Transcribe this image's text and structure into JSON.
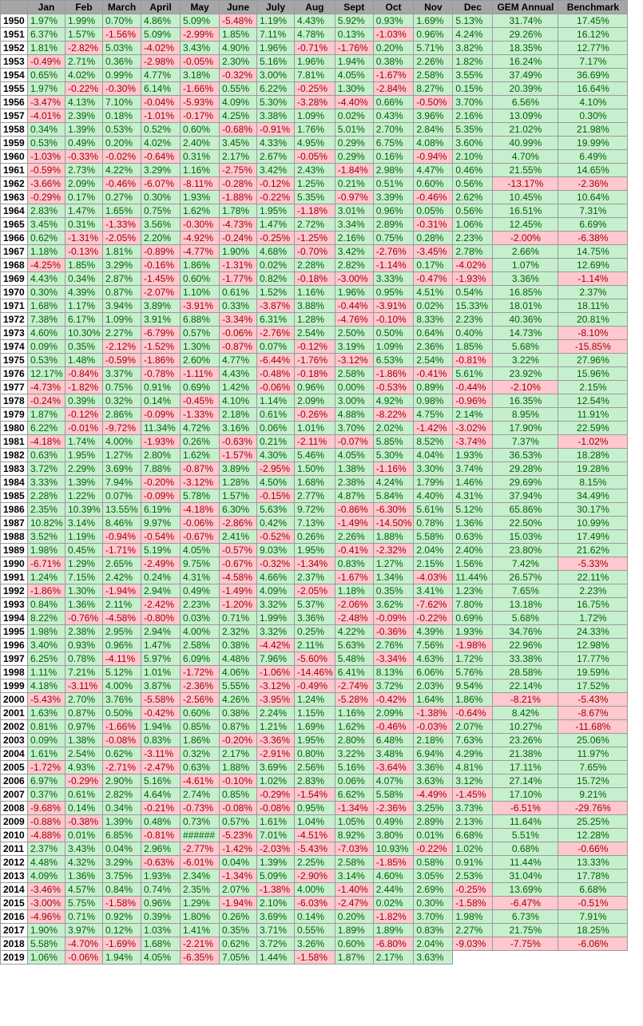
{
  "colors": {
    "header_bg": "#a6a6a6",
    "positive_bg": "#c6efce",
    "positive_text": "#006100",
    "negative_bg": "#ffc7ce",
    "negative_text": "#9c0006"
  },
  "headers": [
    "",
    "Jan",
    "Feb",
    "March",
    "April",
    "May",
    "June",
    "July",
    "Aug",
    "Sept",
    "Oct",
    "Nov",
    "Dec",
    "GEM Annual",
    "Benchmark"
  ],
  "rows": [
    [
      "1950",
      "1.97%",
      "1.99%",
      "0.70%",
      "4.86%",
      "5.09%",
      "-5.48%",
      "1.19%",
      "4.43%",
      "5.92%",
      "0.93%",
      "1.69%",
      "5.13%",
      "31.74%",
      "17.45%"
    ],
    [
      "1951",
      "6.37%",
      "1.57%",
      "-1.56%",
      "5.09%",
      "-2.99%",
      "1.85%",
      "7.11%",
      "4.78%",
      "0.13%",
      "-1.03%",
      "0.96%",
      "4.24%",
      "29.26%",
      "16.12%"
    ],
    [
      "1952",
      "1.81%",
      "-2.82%",
      "5.03%",
      "-4.02%",
      "3.43%",
      "4.90%",
      "1.96%",
      "-0.71%",
      "-1.76%",
      "0.20%",
      "5.71%",
      "3.82%",
      "18.35%",
      "12.77%"
    ],
    [
      "1953",
      "-0.49%",
      "2.71%",
      "0.36%",
      "-2.98%",
      "-0.05%",
      "2.30%",
      "5.16%",
      "1.96%",
      "1.94%",
      "0.38%",
      "2.26%",
      "1.82%",
      "16.24%",
      "7.17%"
    ],
    [
      "1954",
      "0.65%",
      "4.02%",
      "0.99%",
      "4.77%",
      "3.18%",
      "-0.32%",
      "3.00%",
      "7.81%",
      "4.05%",
      "-1.67%",
      "2.58%",
      "3.55%",
      "37.49%",
      "36.69%"
    ],
    [
      "1955",
      "1.97%",
      "-0.22%",
      "-0.30%",
      "6.14%",
      "-1.66%",
      "0.55%",
      "6.22%",
      "-0.25%",
      "1.30%",
      "-2.84%",
      "8.27%",
      "0.15%",
      "20.39%",
      "16.64%"
    ],
    [
      "1956",
      "-3.47%",
      "4.13%",
      "7.10%",
      "-0.04%",
      "-5.93%",
      "4.09%",
      "5.30%",
      "-3.28%",
      "-4.40%",
      "0.66%",
      "-0.50%",
      "3.70%",
      "6.56%",
      "4.10%"
    ],
    [
      "1957",
      "-4.01%",
      "2.39%",
      "0.18%",
      "-1.01%",
      "-0.17%",
      "4.25%",
      "3.38%",
      "1.09%",
      "0.02%",
      "0.43%",
      "3.96%",
      "2.16%",
      "13.09%",
      "0.30%"
    ],
    [
      "1958",
      "0.34%",
      "1.39%",
      "0.53%",
      "0.52%",
      "0.60%",
      "-0.68%",
      "-0.91%",
      "1.76%",
      "5.01%",
      "2.70%",
      "2.84%",
      "5.35%",
      "21.02%",
      "21.98%"
    ],
    [
      "1959",
      "0.53%",
      "0.49%",
      "0.20%",
      "4.02%",
      "2.40%",
      "3.45%",
      "4.33%",
      "4.95%",
      "0.29%",
      "6.75%",
      "4.08%",
      "3.60%",
      "40.99%",
      "19.99%"
    ],
    [
      "1960",
      "-1.03%",
      "-0.33%",
      "-0.02%",
      "-0.64%",
      "0.31%",
      "2.17%",
      "2.67%",
      "-0.05%",
      "0.29%",
      "0.16%",
      "-0.94%",
      "2.10%",
      "4.70%",
      "6.49%"
    ],
    [
      "1961",
      "-0.59%",
      "2.73%",
      "4.22%",
      "3.29%",
      "1.16%",
      "-2.75%",
      "3.42%",
      "2.43%",
      "-1.84%",
      "2.98%",
      "4.47%",
      "0.46%",
      "21.55%",
      "14.65%"
    ],
    [
      "1962",
      "-3.66%",
      "2.09%",
      "-0.46%",
      "-6.07%",
      "-8.11%",
      "-0.28%",
      "-0.12%",
      "1.25%",
      "0.21%",
      "0.51%",
      "0.60%",
      "0.56%",
      "-13.17%",
      "-2.36%"
    ],
    [
      "1963",
      "-0.29%",
      "0.17%",
      "0.27%",
      "0.30%",
      "1.93%",
      "-1.88%",
      "-0.22%",
      "5.35%",
      "-0.97%",
      "3.39%",
      "-0.46%",
      "2.62%",
      "10.45%",
      "10.64%"
    ],
    [
      "1964",
      "2.83%",
      "1.47%",
      "1.65%",
      "0.75%",
      "1.62%",
      "1.78%",
      "1.95%",
      "-1.18%",
      "3.01%",
      "0.96%",
      "0.05%",
      "0.56%",
      "16.51%",
      "7.31%"
    ],
    [
      "1965",
      "3.45%",
      "0.31%",
      "-1.33%",
      "3.56%",
      "-0.30%",
      "-4.73%",
      "1.47%",
      "2.72%",
      "3.34%",
      "2.89%",
      "-0.31%",
      "1.06%",
      "12.45%",
      "6.69%"
    ],
    [
      "1966",
      "0.62%",
      "-1.31%",
      "-2.05%",
      "2.20%",
      "-4.92%",
      "-0.24%",
      "-0.25%",
      "-1.25%",
      "2.16%",
      "0.75%",
      "0.28%",
      "2.23%",
      "-2.00%",
      "-6.38%"
    ],
    [
      "1967",
      "1.18%",
      "-0.13%",
      "1.81%",
      "-0.89%",
      "-4.77%",
      "1.90%",
      "4.68%",
      "-0.70%",
      "3.42%",
      "-2.76%",
      "-3.45%",
      "2.78%",
      "2.66%",
      "14.75%"
    ],
    [
      "1968",
      "-4.25%",
      "1.85%",
      "3.29%",
      "-0.16%",
      "1.86%",
      "-1.31%",
      "0.02%",
      "2.28%",
      "2.82%",
      "-1.14%",
      "0.17%",
      "-4.02%",
      "1.07%",
      "12.69%"
    ],
    [
      "1969",
      "4.43%",
      "0.34%",
      "2.87%",
      "-1.45%",
      "0.60%",
      "-1.77%",
      "0.82%",
      "-0.18%",
      "-3.00%",
      "3.33%",
      "-0.47%",
      "-1.93%",
      "3.36%",
      "-1.14%"
    ],
    [
      "1970",
      "0.30%",
      "4.39%",
      "0.87%",
      "-2.07%",
      "1.10%",
      "0.61%",
      "1.52%",
      "1.16%",
      "1.96%",
      "0.95%",
      "4.51%",
      "0.54%",
      "16.85%",
      "2.37%"
    ],
    [
      "1971",
      "1.68%",
      "1.17%",
      "3.94%",
      "3.89%",
      "-3.91%",
      "0.33%",
      "-3.87%",
      "3.88%",
      "-0.44%",
      "-3.91%",
      "0.02%",
      "15.33%",
      "18.01%",
      "18.11%"
    ],
    [
      "1972",
      "7.38%",
      "6.17%",
      "1.09%",
      "3.91%",
      "6.88%",
      "-3.34%",
      "6.31%",
      "1.28%",
      "-4.76%",
      "-0.10%",
      "8.33%",
      "2.23%",
      "40.36%",
      "20.81%"
    ],
    [
      "1973",
      "4.60%",
      "10.30%",
      "2.27%",
      "-6.79%",
      "0.57%",
      "-0.06%",
      "-2.76%",
      "2.54%",
      "2.50%",
      "0.50%",
      "0.64%",
      "0.40%",
      "14.73%",
      "-8.10%"
    ],
    [
      "1974",
      "0.09%",
      "0.35%",
      "-2.12%",
      "-1.52%",
      "1.30%",
      "-0.87%",
      "0.07%",
      "-0.12%",
      "3.19%",
      "1.09%",
      "2.36%",
      "1.85%",
      "5.68%",
      "-15.85%"
    ],
    [
      "1975",
      "0.53%",
      "1.48%",
      "-0.59%",
      "-1.86%",
      "2.60%",
      "4.77%",
      "-6.44%",
      "-1.76%",
      "-3.12%",
      "6.53%",
      "2.54%",
      "-0.81%",
      "3.22%",
      "27.96%"
    ],
    [
      "1976",
      "12.17%",
      "-0.84%",
      "3.37%",
      "-0.78%",
      "-1.11%",
      "4.43%",
      "-0.48%",
      "-0.18%",
      "2.58%",
      "-1.86%",
      "-0.41%",
      "5.61%",
      "23.92%",
      "15.96%"
    ],
    [
      "1977",
      "-4.73%",
      "-1.82%",
      "0.75%",
      "0.91%",
      "0.69%",
      "1.42%",
      "-0.06%",
      "0.96%",
      "0.00%",
      "-0.53%",
      "0.89%",
      "-0.44%",
      "-2.10%",
      "2.15%"
    ],
    [
      "1978",
      "-0.24%",
      "0.39%",
      "0.32%",
      "0.14%",
      "-0.45%",
      "4.10%",
      "1.14%",
      "2.09%",
      "3.00%",
      "4.92%",
      "0.98%",
      "-0.96%",
      "16.35%",
      "12.54%"
    ],
    [
      "1979",
      "1.87%",
      "-0.12%",
      "2.86%",
      "-0.09%",
      "-1.33%",
      "2.18%",
      "0.61%",
      "-0.26%",
      "4.88%",
      "-8.22%",
      "4.75%",
      "2.14%",
      "8.95%",
      "11.91%"
    ],
    [
      "1980",
      "6.22%",
      "-0.01%",
      "-9.72%",
      "11.34%",
      "4.72%",
      "3.16%",
      "0.06%",
      "1.01%",
      "3.70%",
      "2.02%",
      "-1.42%",
      "-3.02%",
      "17.90%",
      "22.59%"
    ],
    [
      "1981",
      "-4.18%",
      "1.74%",
      "4.00%",
      "-1.93%",
      "0.26%",
      "-0.63%",
      "0.21%",
      "-2.11%",
      "-0.07%",
      "5.85%",
      "8.52%",
      "-3.74%",
      "7.37%",
      "-1.02%"
    ],
    [
      "1982",
      "0.63%",
      "1.95%",
      "1.27%",
      "2.80%",
      "1.62%",
      "-1.57%",
      "4.30%",
      "5.46%",
      "4.05%",
      "5.30%",
      "4.04%",
      "1.93%",
      "36.53%",
      "18.28%"
    ],
    [
      "1983",
      "3.72%",
      "2.29%",
      "3.69%",
      "7.88%",
      "-0.87%",
      "3.89%",
      "-2.95%",
      "1.50%",
      "1.38%",
      "-1.16%",
      "3.30%",
      "3.74%",
      "29.28%",
      "19.28%"
    ],
    [
      "1984",
      "3.33%",
      "1.39%",
      "7.94%",
      "-0.20%",
      "-3.12%",
      "1.28%",
      "4.50%",
      "1.68%",
      "2.38%",
      "4.24%",
      "1.79%",
      "1.46%",
      "29.69%",
      "8.15%"
    ],
    [
      "1985",
      "2.28%",
      "1.22%",
      "0.07%",
      "-0.09%",
      "5.78%",
      "1.57%",
      "-0.15%",
      "2.77%",
      "4.87%",
      "5.84%",
      "4.40%",
      "4.31%",
      "37.94%",
      "34.49%"
    ],
    [
      "1986",
      "2.35%",
      "10.39%",
      "13.55%",
      "6.19%",
      "-4.18%",
      "6.30%",
      "5.63%",
      "9.72%",
      "-0.86%",
      "-6.30%",
      "5.61%",
      "5.12%",
      "65.86%",
      "30.17%"
    ],
    [
      "1987",
      "10.82%",
      "3.14%",
      "8.46%",
      "9.97%",
      "-0.06%",
      "-2.86%",
      "0.42%",
      "7.13%",
      "-1.49%",
      "-14.50%",
      "0.78%",
      "1.36%",
      "22.50%",
      "10.99%"
    ],
    [
      "1988",
      "3.52%",
      "1.19%",
      "-0.94%",
      "-0.54%",
      "-0.67%",
      "2.41%",
      "-0.52%",
      "0.26%",
      "2.26%",
      "1.88%",
      "5.58%",
      "0.63%",
      "15.03%",
      "17.49%"
    ],
    [
      "1989",
      "1.98%",
      "0.45%",
      "-1.71%",
      "5.19%",
      "4.05%",
      "-0.57%",
      "9.03%",
      "1.95%",
      "-0.41%",
      "-2.32%",
      "2.04%",
      "2.40%",
      "23.80%",
      "21.62%"
    ],
    [
      "1990",
      "-6.71%",
      "1.29%",
      "2.65%",
      "-2.49%",
      "9.75%",
      "-0.67%",
      "-0.32%",
      "-1.34%",
      "0.83%",
      "1.27%",
      "2.15%",
      "1.56%",
      "7.42%",
      "-5.33%"
    ],
    [
      "1991",
      "1.24%",
      "7.15%",
      "2.42%",
      "0.24%",
      "4.31%",
      "-4.58%",
      "4.66%",
      "2.37%",
      "-1.67%",
      "1.34%",
      "-4.03%",
      "11.44%",
      "26.57%",
      "22.11%"
    ],
    [
      "1992",
      "-1.86%",
      "1.30%",
      "-1.94%",
      "2.94%",
      "0.49%",
      "-1.49%",
      "4.09%",
      "-2.05%",
      "1.18%",
      "0.35%",
      "3.41%",
      "1.23%",
      "7.65%",
      "2.23%"
    ],
    [
      "1993",
      "0.84%",
      "1.36%",
      "2.11%",
      "-2.42%",
      "2.23%",
      "-1.20%",
      "3.32%",
      "5.37%",
      "-2.06%",
      "3.62%",
      "-7.62%",
      "7.80%",
      "13.18%",
      "16.75%"
    ],
    [
      "1994",
      "8.22%",
      "-0.76%",
      "-4.58%",
      "-0.80%",
      "0.03%",
      "0.71%",
      "1.99%",
      "3.36%",
      "-2.48%",
      "-0.09%",
      "-0.22%",
      "0.69%",
      "5.68%",
      "1.72%"
    ],
    [
      "1995",
      "1.98%",
      "2.38%",
      "2.95%",
      "2.94%",
      "4.00%",
      "2.32%",
      "3.32%",
      "0.25%",
      "4.22%",
      "-0.36%",
      "4.39%",
      "1.93%",
      "34.76%",
      "24.33%"
    ],
    [
      "1996",
      "3.40%",
      "0.93%",
      "0.96%",
      "1.47%",
      "2.58%",
      "0.38%",
      "-4.42%",
      "2.11%",
      "5.63%",
      "2.76%",
      "7.56%",
      "-1.98%",
      "22.96%",
      "12.98%"
    ],
    [
      "1997",
      "6.25%",
      "0.78%",
      "-4.11%",
      "5.97%",
      "6.09%",
      "4.48%",
      "7.96%",
      "-5.60%",
      "5.48%",
      "-3.34%",
      "4.63%",
      "1.72%",
      "33.38%",
      "17.77%"
    ],
    [
      "1998",
      "1.11%",
      "7.21%",
      "5.12%",
      "1.01%",
      "-1.72%",
      "4.06%",
      "-1.06%",
      "-14.46%",
      "6.41%",
      "8.13%",
      "6.06%",
      "5.76%",
      "28.58%",
      "19.59%"
    ],
    [
      "1999",
      "4.18%",
      "-3.11%",
      "4.00%",
      "3.87%",
      "-2.36%",
      "5.55%",
      "-3.12%",
      "-0.49%",
      "-2.74%",
      "3.72%",
      "2.03%",
      "9.54%",
      "22.14%",
      "17.52%"
    ],
    [
      "2000",
      "-5.43%",
      "2.70%",
      "3.76%",
      "-5.58%",
      "-2.56%",
      "4.26%",
      "-3.95%",
      "1.24%",
      "-5.28%",
      "-0.42%",
      "1.64%",
      "1.86%",
      "-8.21%",
      "-5.43%"
    ],
    [
      "2001",
      "1.63%",
      "0.87%",
      "0.50%",
      "-0.42%",
      "0.60%",
      "0.38%",
      "2.24%",
      "1.15%",
      "1.16%",
      "2.09%",
      "-1.38%",
      "-0.64%",
      "8.42%",
      "-8.67%"
    ],
    [
      "2002",
      "0.81%",
      "0.97%",
      "-1.66%",
      "1.94%",
      "0.85%",
      "0.87%",
      "1.21%",
      "1.69%",
      "1.62%",
      "-0.46%",
      "-0.03%",
      "2.07%",
      "10.27%",
      "-11.68%"
    ],
    [
      "2003",
      "0.09%",
      "1.38%",
      "-0.08%",
      "0.83%",
      "1.86%",
      "-0.20%",
      "-3.36%",
      "1.95%",
      "2.80%",
      "6.48%",
      "2.18%",
      "7.63%",
      "23.26%",
      "25.06%"
    ],
    [
      "2004",
      "1.61%",
      "2.54%",
      "0.62%",
      "-3.11%",
      "0.32%",
      "2.17%",
      "-2.91%",
      "0.80%",
      "3.22%",
      "3.48%",
      "6.94%",
      "4.29%",
      "21.38%",
      "11.97%"
    ],
    [
      "2005",
      "-1.72%",
      "4.93%",
      "-2.71%",
      "-2.47%",
      "0.63%",
      "1.88%",
      "3.69%",
      "2.56%",
      "5.16%",
      "-3.64%",
      "3.36%",
      "4.81%",
      "17.11%",
      "7.65%"
    ],
    [
      "2006",
      "6.97%",
      "-0.29%",
      "2.90%",
      "5.16%",
      "-4.61%",
      "-0.10%",
      "1.02%",
      "2.83%",
      "0.06%",
      "4.07%",
      "3.63%",
      "3.12%",
      "27.14%",
      "15.72%"
    ],
    [
      "2007",
      "0.37%",
      "0.61%",
      "2.82%",
      "4.64%",
      "2.74%",
      "0.85%",
      "-0.29%",
      "-1.54%",
      "6.62%",
      "5.58%",
      "-4.49%",
      "-1.45%",
      "17.10%",
      "9.21%"
    ],
    [
      "2008",
      "-9.68%",
      "0.14%",
      "0.34%",
      "-0.21%",
      "-0.73%",
      "-0.08%",
      "-0.08%",
      "0.95%",
      "-1.34%",
      "-2.36%",
      "3.25%",
      "3.73%",
      "-6.51%",
      "-29.76%"
    ],
    [
      "2009",
      "-0.88%",
      "-0.38%",
      "1.39%",
      "0.48%",
      "0.73%",
      "0.57%",
      "1.61%",
      "1.04%",
      "1.05%",
      "0.49%",
      "2.89%",
      "2.13%",
      "11.64%",
      "25.25%"
    ],
    [
      "2010",
      "-4.88%",
      "0.01%",
      "6.85%",
      "-0.81%",
      "######",
      "-5.23%",
      "7.01%",
      "-4.51%",
      "8.92%",
      "3.80%",
      "0.01%",
      "6.68%",
      "5.51%",
      "12.28%"
    ],
    [
      "2011",
      "2.37%",
      "3.43%",
      "0.04%",
      "2.96%",
      "-2.77%",
      "-1.42%",
      "-2.03%",
      "-5.43%",
      "-7.03%",
      "10.93%",
      "-0.22%",
      "1.02%",
      "0.68%",
      "-0.66%"
    ],
    [
      "2012",
      "4.48%",
      "4.32%",
      "3.29%",
      "-0.63%",
      "-6.01%",
      "0.04%",
      "1.39%",
      "2.25%",
      "2.58%",
      "-1.85%",
      "0.58%",
      "0.91%",
      "11.44%",
      "13.33%"
    ],
    [
      "2013",
      "4.09%",
      "1.36%",
      "3.75%",
      "1.93%",
      "2.34%",
      "-1.34%",
      "5.09%",
      "-2.90%",
      "3.14%",
      "4.60%",
      "3.05%",
      "2.53%",
      "31.04%",
      "17.78%"
    ],
    [
      "2014",
      "-3.46%",
      "4.57%",
      "0.84%",
      "0.74%",
      "2.35%",
      "2.07%",
      "-1.38%",
      "4.00%",
      "-1.40%",
      "2.44%",
      "2.69%",
      "-0.25%",
      "13.69%",
      "6.68%"
    ],
    [
      "2015",
      "-3.00%",
      "5.75%",
      "-1.58%",
      "0.96%",
      "1.29%",
      "-1.94%",
      "2.10%",
      "-6.03%",
      "-2.47%",
      "0.02%",
      "0.30%",
      "-1.58%",
      "-6.47%",
      "-0.51%"
    ],
    [
      "2016",
      "-4.96%",
      "0.71%",
      "0.92%",
      "0.39%",
      "1.80%",
      "0.26%",
      "3.69%",
      "0.14%",
      "0.20%",
      "-1.82%",
      "3.70%",
      "1.98%",
      "6.73%",
      "7.91%"
    ],
    [
      "2017",
      "1.90%",
      "3.97%",
      "0.12%",
      "1.03%",
      "1.41%",
      "0.35%",
      "3.71%",
      "0.55%",
      "1.89%",
      "1.89%",
      "0.83%",
      "2.27%",
      "21.75%",
      "18.25%"
    ],
    [
      "2018",
      "5.58%",
      "-4.70%",
      "-1.69%",
      "1.68%",
      "-2.21%",
      "0.62%",
      "3.72%",
      "3.26%",
      "0.60%",
      "-6.80%",
      "2.04%",
      "-9.03%",
      "-7.75%",
      "-6.06%"
    ],
    [
      "2019",
      "1.06%",
      "-0.06%",
      "1.94%",
      "4.05%",
      "-6.35%",
      "7.05%",
      "1.44%",
      "-1.58%",
      "1.87%",
      "2.17%",
      "3.63%",
      "",
      "",
      ""
    ]
  ]
}
